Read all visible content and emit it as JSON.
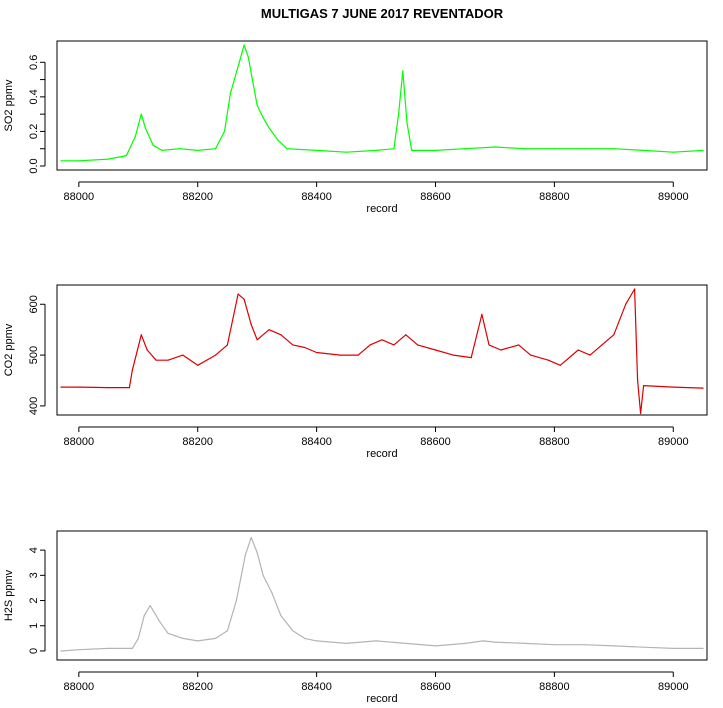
{
  "figure": {
    "title": "MULTIGAS 7 JUNE 2017 REVENTADOR"
  },
  "chart_data": [
    {
      "type": "line",
      "xlabel": "record",
      "ylabel": "SO2 ppmv",
      "xlim": [
        87970,
        89050
      ],
      "ylim": [
        0.0,
        0.7
      ],
      "x_ticks": [
        88000,
        88200,
        88400,
        88600,
        88800,
        89000
      ],
      "y_ticks": [
        0.0,
        0.1,
        0.2,
        0.3,
        0.4,
        0.5,
        0.6
      ],
      "y_tick_labels": [
        "0.0",
        "0.2",
        "0.4",
        "0.6"
      ],
      "y_tick_labeled": [
        0.0,
        0.2,
        0.4,
        0.6
      ],
      "series": [
        {
          "color": "#00ff00",
          "x": [
            87970,
            88000,
            88050,
            88080,
            88095,
            88105,
            88112,
            88125,
            88140,
            88170,
            88200,
            88230,
            88245,
            88255,
            88270,
            88278,
            88285,
            88292,
            88300,
            88310,
            88320,
            88335,
            88350,
            88400,
            88450,
            88500,
            88530,
            88538,
            88545,
            88552,
            88560,
            88600,
            88650,
            88700,
            88750,
            88800,
            88850,
            88900,
            88950,
            89000,
            89050
          ],
          "y": [
            0.03,
            0.03,
            0.04,
            0.06,
            0.17,
            0.3,
            0.22,
            0.12,
            0.09,
            0.1,
            0.09,
            0.1,
            0.2,
            0.42,
            0.6,
            0.7,
            0.63,
            0.5,
            0.35,
            0.28,
            0.22,
            0.15,
            0.1,
            0.09,
            0.08,
            0.09,
            0.1,
            0.3,
            0.55,
            0.25,
            0.09,
            0.09,
            0.1,
            0.11,
            0.1,
            0.1,
            0.1,
            0.1,
            0.09,
            0.08,
            0.09
          ]
        }
      ]
    },
    {
      "type": "line",
      "xlabel": "record",
      "ylabel": "CO2 ppmv",
      "xlim": [
        87970,
        89050
      ],
      "ylim": [
        390,
        630
      ],
      "x_ticks": [
        88000,
        88200,
        88400,
        88600,
        88800,
        89000
      ],
      "y_ticks": [
        400,
        500,
        600
      ],
      "y_tick_labels": [
        "400",
        "500",
        "600"
      ],
      "y_tick_labeled": [
        400,
        500,
        600
      ],
      "series": [
        {
          "color": "#dd0000",
          "x": [
            87970,
            88000,
            88050,
            88085,
            88090,
            88105,
            88115,
            88130,
            88150,
            88175,
            88200,
            88230,
            88250,
            88268,
            88278,
            88290,
            88300,
            88320,
            88340,
            88360,
            88380,
            88400,
            88440,
            88470,
            88490,
            88510,
            88530,
            88550,
            88570,
            88600,
            88630,
            88660,
            88678,
            88690,
            88710,
            88740,
            88760,
            88790,
            88810,
            88840,
            88860,
            88880,
            88900,
            88920,
            88935,
            88940,
            88945,
            88950,
            89000,
            89050
          ],
          "y": [
            437,
            437,
            436,
            436,
            470,
            540,
            510,
            490,
            490,
            500,
            480,
            500,
            520,
            620,
            610,
            560,
            530,
            550,
            540,
            520,
            515,
            505,
            500,
            500,
            520,
            530,
            520,
            540,
            520,
            510,
            500,
            495,
            580,
            520,
            510,
            520,
            500,
            490,
            480,
            510,
            500,
            520,
            540,
            600,
            630,
            450,
            385,
            440,
            437,
            435
          ]
        }
      ]
    },
    {
      "type": "line",
      "xlabel": "record",
      "ylabel": "H2S ppmv",
      "xlim": [
        87970,
        89050
      ],
      "ylim": [
        -0.2,
        4.6
      ],
      "x_ticks": [
        88000,
        88200,
        88400,
        88600,
        88800,
        89000
      ],
      "y_ticks": [
        0,
        1,
        2,
        3,
        4
      ],
      "y_tick_labels": [
        "0",
        "1",
        "2",
        "3",
        "4"
      ],
      "y_tick_labeled": [
        0,
        1,
        2,
        3,
        4
      ],
      "series": [
        {
          "color": "#b4b4b4",
          "x": [
            87970,
            88000,
            88050,
            88090,
            88100,
            88110,
            88120,
            88135,
            88150,
            88175,
            88200,
            88230,
            88250,
            88265,
            88280,
            88290,
            88300,
            88310,
            88325,
            88340,
            88360,
            88380,
            88400,
            88450,
            88500,
            88550,
            88600,
            88650,
            88680,
            88700,
            88750,
            88800,
            88850,
            88900,
            88950,
            89000,
            89050
          ],
          "y": [
            0.0,
            0.05,
            0.1,
            0.1,
            0.5,
            1.4,
            1.8,
            1.2,
            0.7,
            0.5,
            0.4,
            0.5,
            0.8,
            2.0,
            3.8,
            4.5,
            3.9,
            3.0,
            2.3,
            1.4,
            0.8,
            0.5,
            0.4,
            0.3,
            0.4,
            0.3,
            0.2,
            0.3,
            0.4,
            0.35,
            0.3,
            0.25,
            0.25,
            0.2,
            0.15,
            0.1,
            0.1
          ]
        }
      ]
    }
  ]
}
